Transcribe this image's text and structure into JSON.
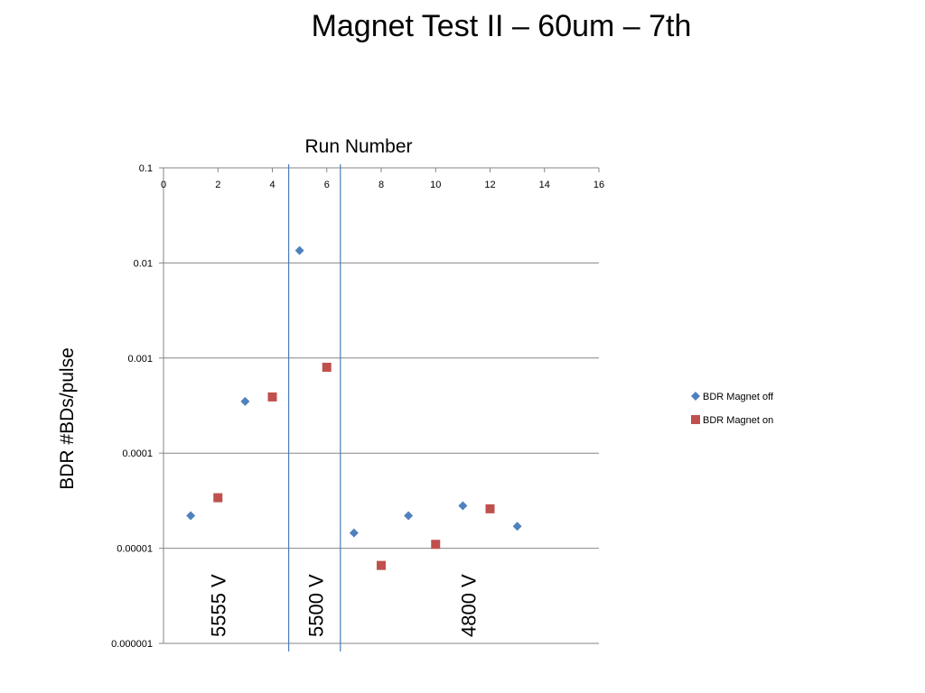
{
  "slide": {
    "title": "Magnet Test II – 60um – 7th"
  },
  "chart_data": {
    "type": "scatter",
    "xlabel": "Run Number",
    "ylabel": "BDR #BDs/pulse",
    "xlim": [
      0,
      16
    ],
    "ylim": [
      1e-06,
      0.1
    ],
    "yscale": "log",
    "x_ticks": [
      "0",
      "2",
      "4",
      "6",
      "8",
      "10",
      "12",
      "14",
      "16"
    ],
    "y_ticks": [
      "0.1",
      "0.01",
      "0.001",
      "0.0001",
      "0.00001",
      "0.000001"
    ],
    "x_axis_position": "top",
    "grid": "horizontal",
    "legend_position": "right",
    "series": [
      {
        "name": "BDR Magnet off",
        "marker": "diamond",
        "color": "#4F81BD",
        "x": [
          1,
          3,
          5,
          7,
          9,
          11,
          13
        ],
        "y": [
          2.2e-05,
          0.00035,
          0.0135,
          1.45e-05,
          2.2e-05,
          2.8e-05,
          1.7e-05
        ]
      },
      {
        "name": "BDR Magnet on",
        "marker": "square",
        "color": "#C0504D",
        "x": [
          2,
          4,
          6,
          8,
          10,
          12
        ],
        "y": [
          3.4e-05,
          0.00039,
          0.0008,
          6.6e-06,
          1.1e-05,
          2.6e-05
        ]
      }
    ],
    "vertical_lines": [
      4.6,
      6.5
    ],
    "annotations": [
      {
        "text": "5555 V",
        "x": 2
      },
      {
        "text": "5500 V",
        "x": 5.6
      },
      {
        "text": "4800 V",
        "x": 11.2
      }
    ]
  }
}
